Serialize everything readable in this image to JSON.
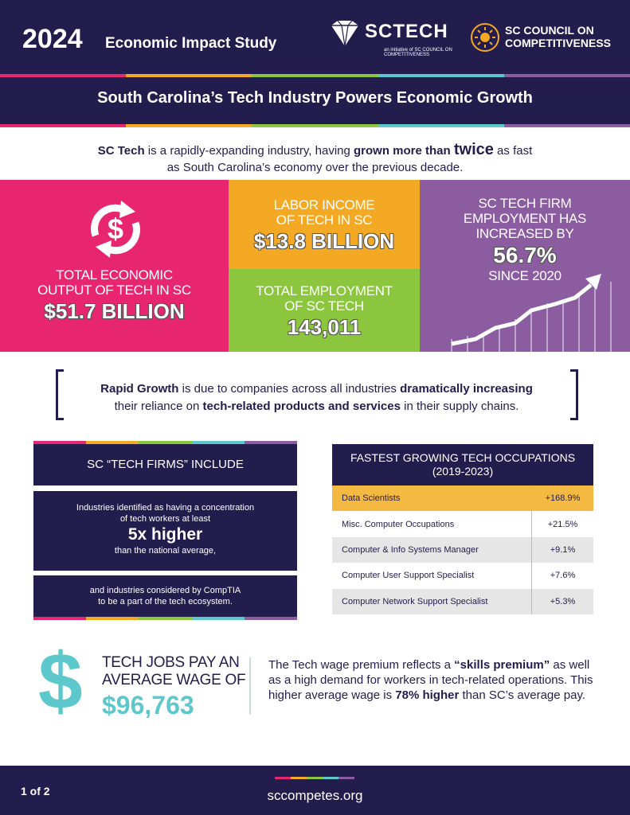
{
  "header": {
    "year": "2024",
    "study": "Economic Impact Study",
    "sctech_logo_text": "SCTECH",
    "sctech_logo_sub": "an initiative of SC COUNCIL ON COMPETITIVENESS",
    "council_logo_line1": "SC COUNCIL ON",
    "council_logo_line2": "COMPETITIVENESS",
    "banner": "South Carolina’s Tech Industry Powers Economic Growth"
  },
  "intro": {
    "part1": "SC Tech",
    "part2": " is a rapidly-expanding industry, having ",
    "part3": "grown more than ",
    "part4": "twice",
    "part5": " as fast",
    "part6": "as South Carolina’s economy over the previous decade."
  },
  "tiles": {
    "output_label1": "TOTAL ECONOMIC",
    "output_label2": "OUTPUT OF TECH IN SC",
    "output_value": "$51.7 BILLION",
    "labor_label1": "LABOR INCOME",
    "labor_label2": "OF TECH IN SC",
    "labor_value": "$13.8 BILLION",
    "employ_label1": "TOTAL EMPLOYMENT",
    "employ_label2": "OF SC TECH",
    "employ_value": "143,011",
    "firm_label1": "SC TECH FIRM",
    "firm_label2": "EMPLOYMENT HAS",
    "firm_label3": "INCREASED BY",
    "firm_value": "56.7%",
    "firm_since": "SINCE 2020"
  },
  "quote": {
    "p1": "Rapid Growth",
    "p2": " is due to companies across all industries ",
    "p3": "dramatically increasing",
    "p4": "their reliance on ",
    "p5": "tech-related products and services",
    "p6": " in their supply chains."
  },
  "firms": {
    "title": "SC “TECH FIRMS” INCLUDE",
    "body1": "Industries identified as having a concentration",
    "body2": "of tech workers at least",
    "big": "5x higher",
    "body3": "than the national average,",
    "body4": "and industries considered by CompTIA",
    "body5": "to be a part of the tech ecosystem."
  },
  "occupations": {
    "title1": "FASTEST GROWING TECH OCCUPATIONS",
    "title2": "(2019-2023)",
    "rows": [
      {
        "name": "Data Scientists",
        "value": "+168.9%"
      },
      {
        "name": "Misc. Computer Occupations",
        "value": "+21.5%"
      },
      {
        "name": "Computer & Info Systems Manager",
        "value": "+9.1%"
      },
      {
        "name": "Computer User Support Specialist",
        "value": "+7.6%"
      },
      {
        "name": "Computer Network Support Specialist",
        "value": "+5.3%"
      }
    ]
  },
  "wage": {
    "symbol": "$",
    "label1": "TECH JOBS PAY AN",
    "label2": "AVERAGE WAGE OF",
    "value": "$96,763",
    "t1": "The Tech wage premium reflects a ",
    "t2": "“skills premium”",
    "t3": "as well as a high demand for workers in tech-related operations. This higher average wage is ",
    "t4": "78% higher",
    "t5": " than SC’s average pay."
  },
  "footer": {
    "page": "1 of 2",
    "site": "sccompetes.org"
  },
  "colors": {
    "navy": "#231d4d",
    "pink": "#e8266f",
    "orange": "#f4a925",
    "green": "#8cc63f",
    "purple": "#8b5c9f",
    "teal": "#5cc8cc"
  }
}
